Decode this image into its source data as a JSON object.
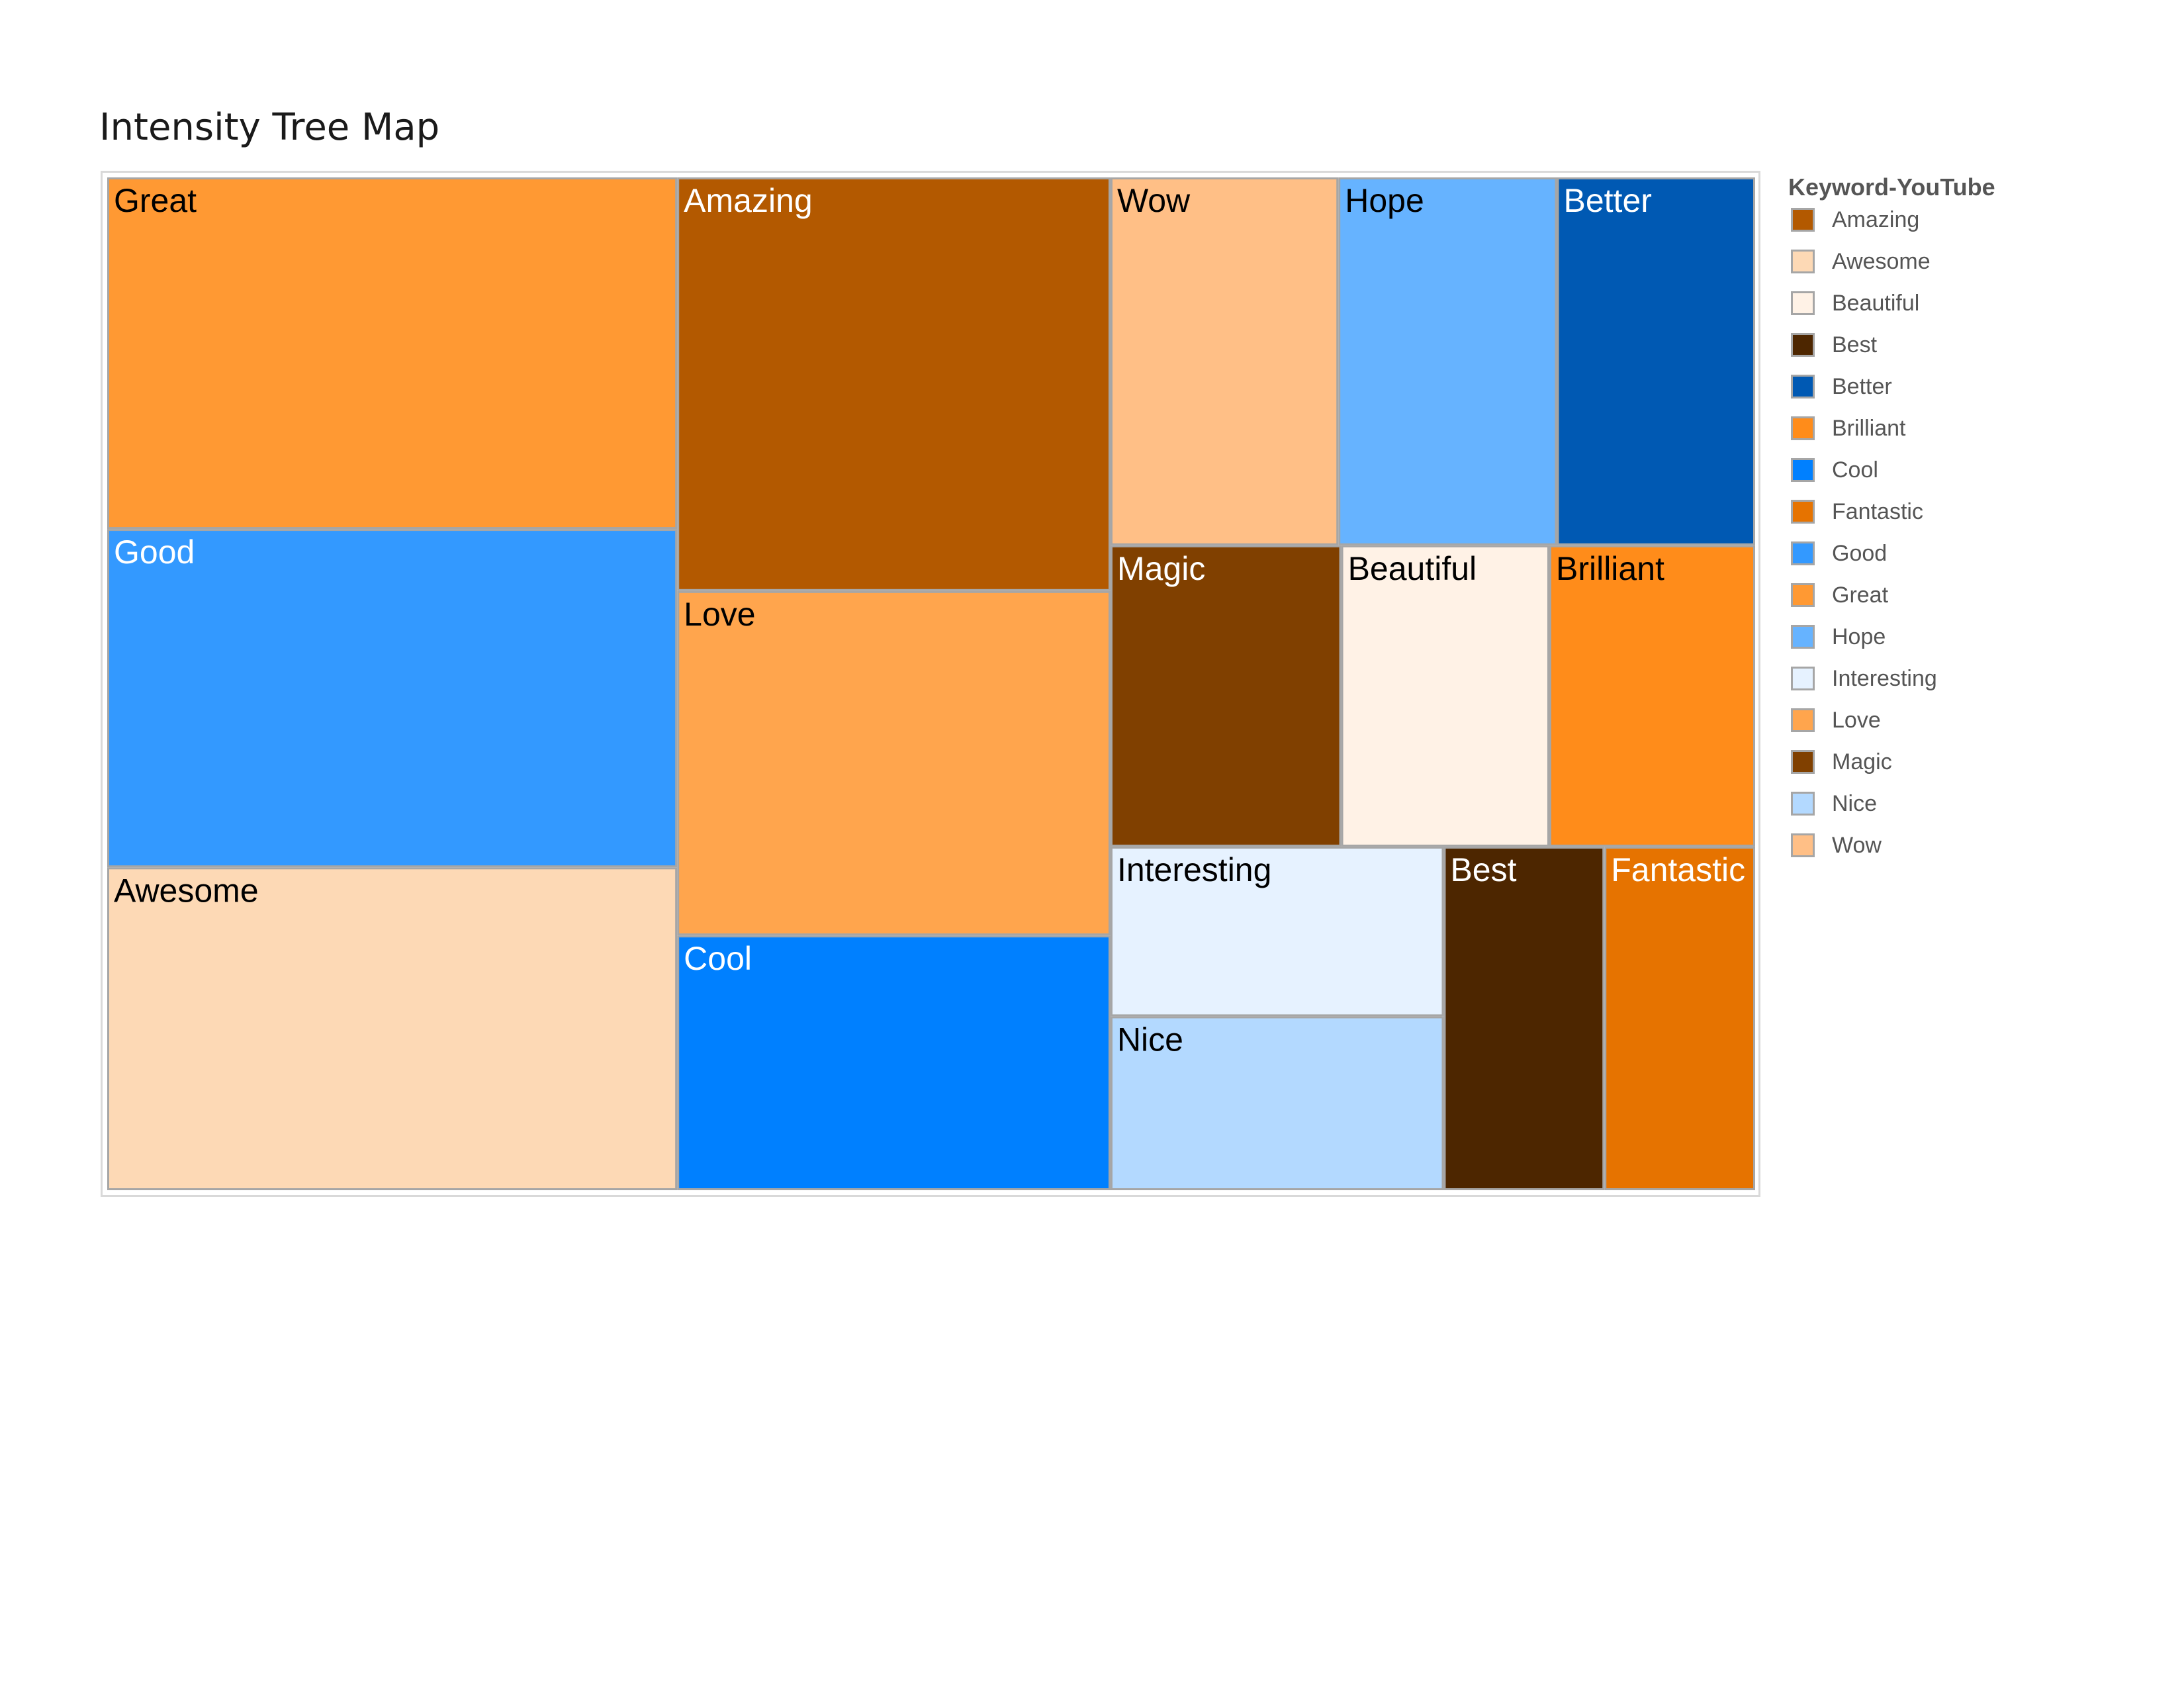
{
  "chart_data": {
    "type": "treemap",
    "title": "Intensity Tree Map",
    "color_field": "Keyword-YouTube",
    "tiles": [
      {
        "label": "Great",
        "value": 29.4,
        "color": "#FF9933",
        "text_color": "#000000",
        "column": 0
      },
      {
        "label": "Good",
        "value": 28.3,
        "color": "#3399FF",
        "text_color": "#ffffff",
        "column": 0
      },
      {
        "label": "Awesome",
        "value": 27.0,
        "color": "#FDD9B5",
        "text_color": "#000000",
        "column": 0
      },
      {
        "label": "Amazing",
        "value": 26.3,
        "color": "#B35900",
        "text_color": "#ffffff",
        "column": 1
      },
      {
        "label": "Love",
        "value": 21.9,
        "color": "#FFA54D",
        "text_color": "#000000",
        "column": 1
      },
      {
        "label": "Cool",
        "value": 16.2,
        "color": "#0080FF",
        "text_color": "#ffffff",
        "column": 1
      },
      {
        "label": "Wow",
        "value": 12.3,
        "color": "#FFBF86",
        "text_color": "#000000",
        "column": 2,
        "row": 0
      },
      {
        "label": "Hope",
        "value": 11.8,
        "color": "#66B3FF",
        "text_color": "#000000",
        "column": 2,
        "row": 0
      },
      {
        "label": "Better",
        "value": 10.7,
        "color": "#0059B3",
        "text_color": "#ffffff",
        "column": 2,
        "row": 0
      },
      {
        "label": "Magic",
        "value": 10.2,
        "color": "#804000",
        "text_color": "#ffffff",
        "column": 2,
        "row": 1
      },
      {
        "label": "Beautiful",
        "value": 9.2,
        "color": "#FFF2E6",
        "text_color": "#000000",
        "column": 2,
        "row": 1
      },
      {
        "label": "Brilliant",
        "value": 9.1,
        "color": "#FF8C1A",
        "text_color": "#000000",
        "column": 2,
        "row": 1
      },
      {
        "label": "Interesting",
        "value": 8.3,
        "color": "#E6F2FF",
        "text_color": "#000000",
        "column": 2,
        "row": 2
      },
      {
        "label": "Nice",
        "value": 8.5,
        "color": "#B3D9FF",
        "text_color": "#000000",
        "column": 2,
        "row": 2
      },
      {
        "label": "Best",
        "value": 8.1,
        "color": "#4D2600",
        "text_color": "#ffffff",
        "column": 2,
        "row": 2
      },
      {
        "label": "Fantastic",
        "value": 7.6,
        "color": "#E67300",
        "text_color": "#ffffff",
        "column": 2,
        "row": 2
      }
    ],
    "legend": {
      "title": "Keyword-YouTube",
      "placement": "right",
      "items": [
        {
          "label": "Amazing",
          "color": "#B35900"
        },
        {
          "label": "Awesome",
          "color": "#FDD9B5"
        },
        {
          "label": "Beautiful",
          "color": "#FFF2E6"
        },
        {
          "label": "Best",
          "color": "#4D2600"
        },
        {
          "label": "Better",
          "color": "#0059B3"
        },
        {
          "label": "Brilliant",
          "color": "#FF8C1A"
        },
        {
          "label": "Cool",
          "color": "#0080FF"
        },
        {
          "label": "Fantastic",
          "color": "#E67300"
        },
        {
          "label": "Good",
          "color": "#3399FF"
        },
        {
          "label": "Great",
          "color": "#FF9933"
        },
        {
          "label": "Hope",
          "color": "#66B3FF"
        },
        {
          "label": "Interesting",
          "color": "#E6F2FF"
        },
        {
          "label": "Love",
          "color": "#FFA54D"
        },
        {
          "label": "Magic",
          "color": "#804000"
        },
        {
          "label": "Nice",
          "color": "#B3D9FF"
        },
        {
          "label": "Wow",
          "color": "#FFBF86"
        }
      ]
    }
  }
}
